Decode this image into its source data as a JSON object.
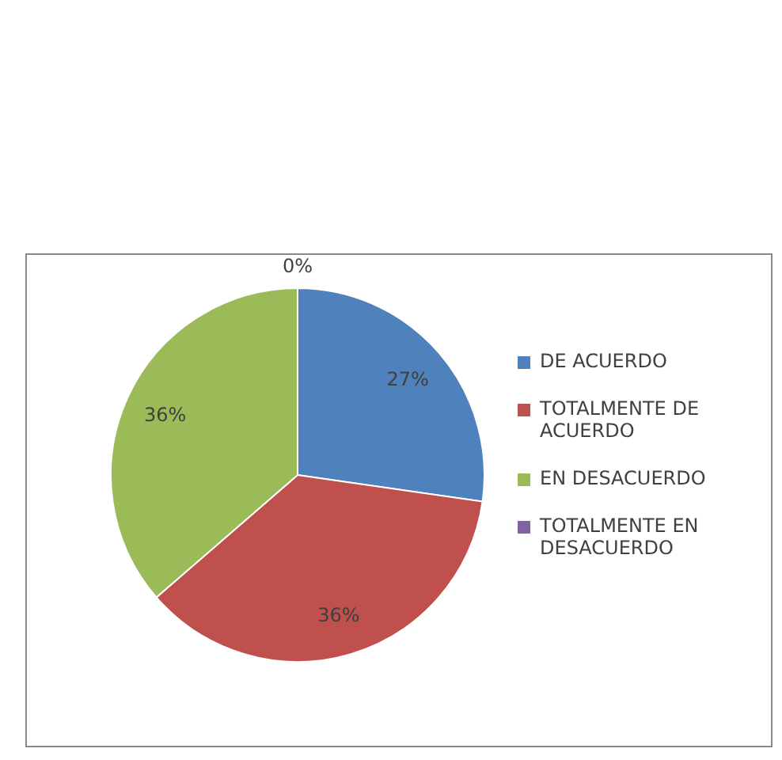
{
  "chart_data": {
    "type": "pie",
    "categories": [
      "DE ACUERDO",
      "TOTALMENTE DE ACUERDO",
      "EN DESACUERDO",
      "TOTALMENTE EN DESACUERDO"
    ],
    "values": [
      27,
      36,
      36,
      0
    ],
    "colors": [
      "#4f81bd",
      "#c0504d",
      "#9bbb59",
      "#8064a2"
    ],
    "value_labels": [
      "27%",
      "36%",
      "36%",
      "0%"
    ],
    "legend": "right"
  }
}
